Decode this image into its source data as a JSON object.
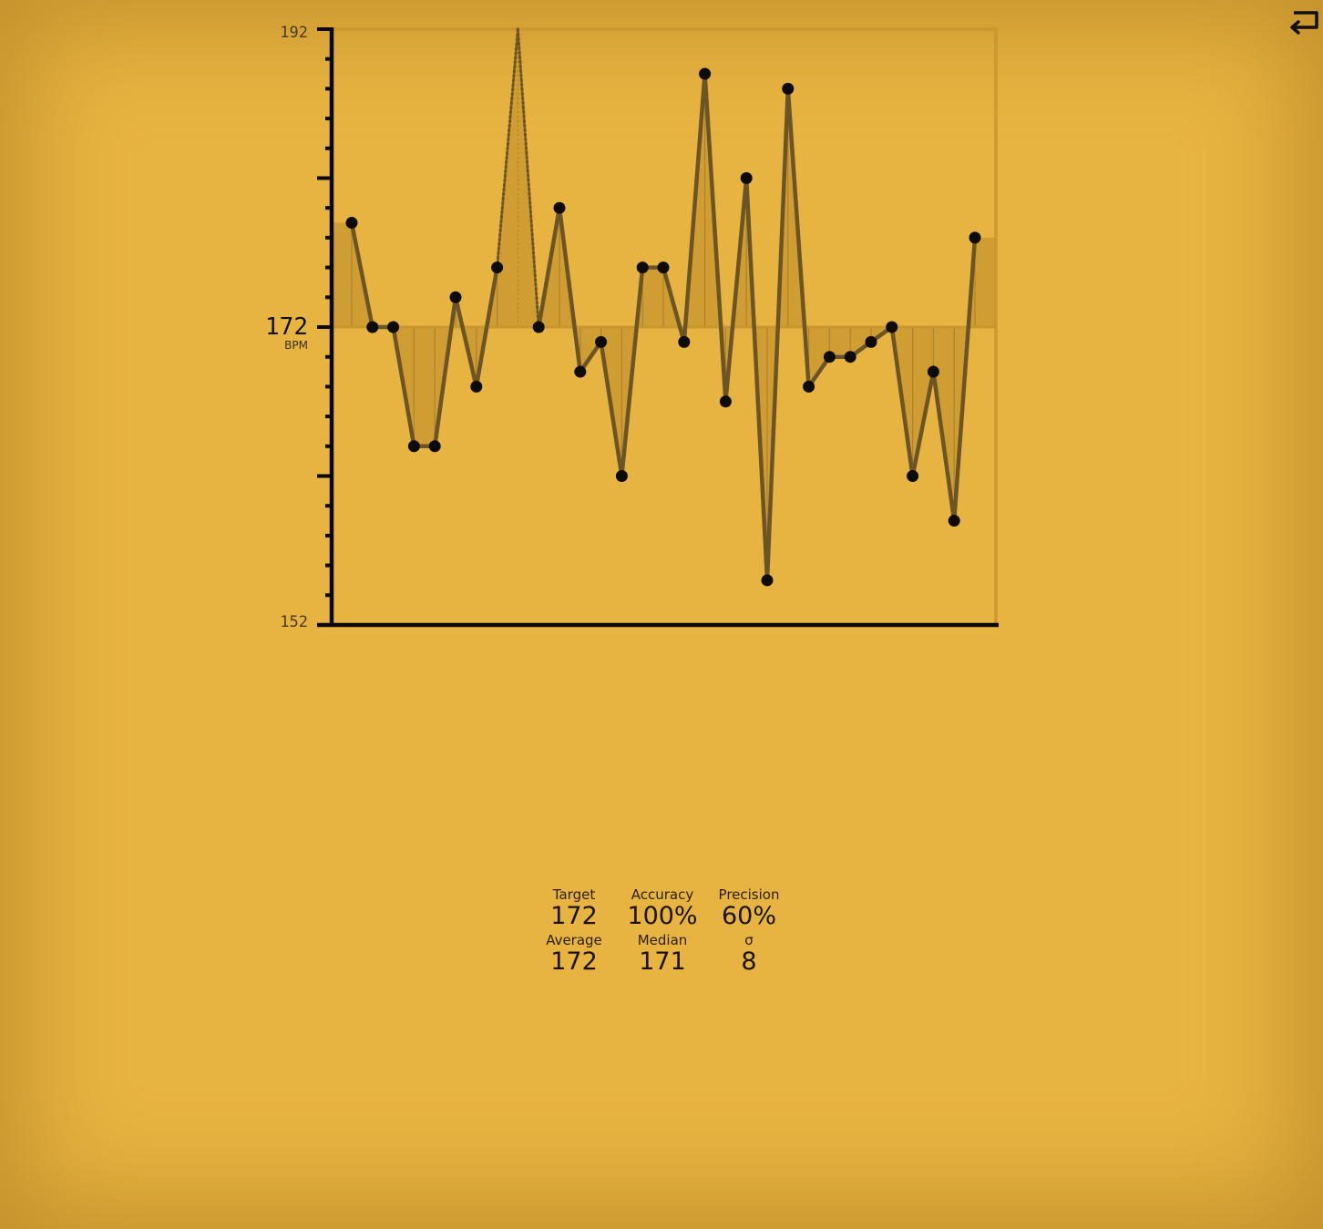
{
  "chart_data": {
    "type": "line",
    "ylabel": "BPM",
    "ylim": [
      152,
      192
    ],
    "y_ticks_labeled": [
      192,
      172,
      152
    ],
    "target": 172,
    "series": [
      {
        "values": [
          179,
          172,
          172,
          164,
          164,
          174,
          168,
          176,
          192,
          172,
          180,
          169,
          171,
          162,
          176,
          176,
          171,
          189,
          167,
          182,
          155,
          188,
          168,
          170,
          170,
          171,
          172,
          162,
          169,
          159,
          178
        ],
        "dotted_indices": [
          8
        ],
        "hidden_point_indices": [
          8
        ]
      }
    ],
    "grid": false,
    "legend": "none"
  },
  "colors": {
    "background": "#e8b441",
    "line": "#6b5426",
    "point": "#0d0b06",
    "axis": "#0a0805",
    "fill": "#c8962e",
    "frame": "#c8962e"
  },
  "stats": [
    {
      "label": "Target",
      "value": "172"
    },
    {
      "label": "Accuracy",
      "value": "100%"
    },
    {
      "label": "Precision",
      "value": "60%"
    },
    {
      "label": "Average",
      "value": "172"
    },
    {
      "label": "Median",
      "value": "171"
    },
    {
      "label": "σ",
      "value": "8"
    }
  ],
  "back_icon": "return-arrow-icon"
}
